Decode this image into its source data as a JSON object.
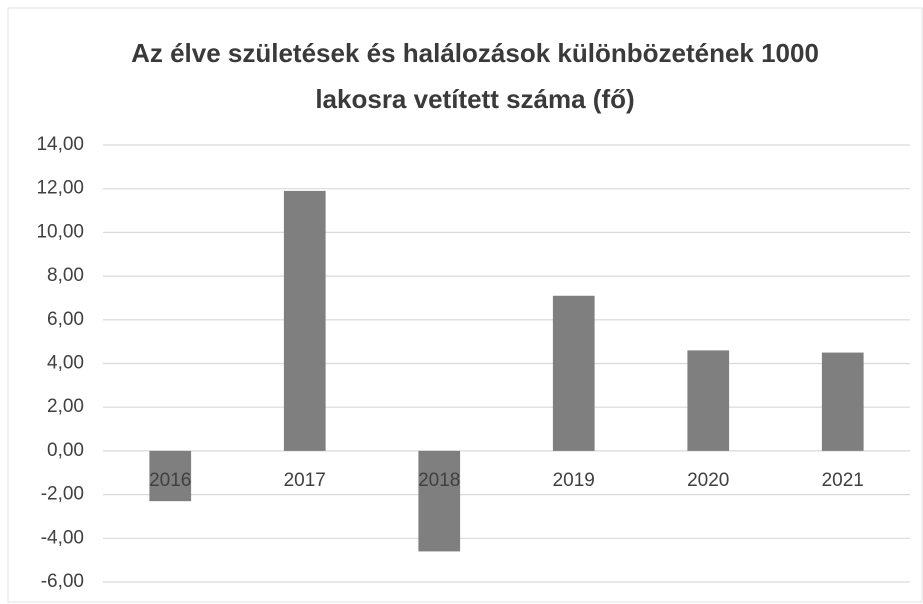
{
  "chart_data": {
    "type": "bar",
    "title": "Az élve születések és halálozások különbözetének 1000 lakosra vetített száma (fő)",
    "categories": [
      "2016",
      "2017",
      "2018",
      "2019",
      "2020",
      "2021"
    ],
    "values": [
      -2.3,
      11.9,
      -4.6,
      7.1,
      4.6,
      4.5
    ],
    "color": "#7f7f7f",
    "ylim": [
      -6,
      14
    ],
    "yticks": [
      {
        "value": -6,
        "label": "-6,00"
      },
      {
        "value": -4,
        "label": "-4,00"
      },
      {
        "value": -2,
        "label": "-2,00"
      },
      {
        "value": 0,
        "label": "0,00"
      },
      {
        "value": 2,
        "label": "2,00"
      },
      {
        "value": 4,
        "label": "4,00"
      },
      {
        "value": 6,
        "label": "6,00"
      },
      {
        "value": 8,
        "label": "8,00"
      },
      {
        "value": 10,
        "label": "10,00"
      },
      {
        "value": 12,
        "label": "12,00"
      },
      {
        "value": 14,
        "label": "14,00"
      }
    ],
    "grid": true
  }
}
